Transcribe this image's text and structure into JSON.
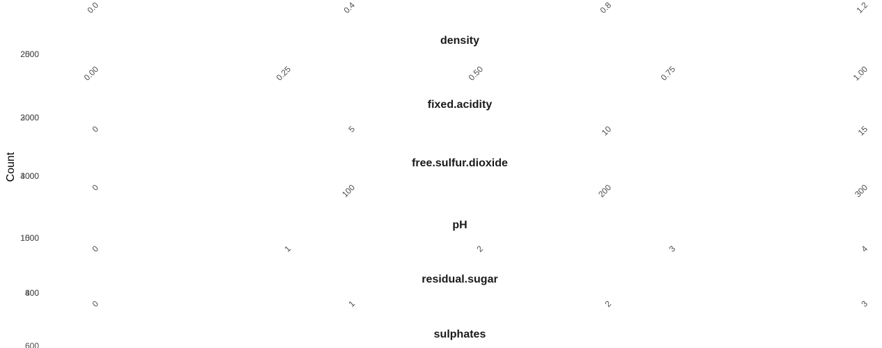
{
  "chart_data": {
    "type": "bar",
    "ylabel": "Count",
    "xlabel": "",
    "grid": false,
    "legend": "none",
    "colors": {
      "title": "#1a1a1a",
      "tick": "#4d4d4d",
      "axis_title": "#000000"
    },
    "panels": [
      {
        "title": "",
        "x_ticks": [
          "0.0",
          "0.4",
          "0.8",
          "1.2"
        ],
        "y_ticks": []
      },
      {
        "title": "density",
        "x_ticks": [
          "0.00",
          "0.25",
          "0.50",
          "0.75",
          "1.00"
        ],
        "y_ticks": [
          "2500",
          "2000"
        ]
      },
      {
        "title": "fixed.acidity",
        "x_ticks": [
          "0",
          "5",
          "10",
          "15"
        ],
        "y_ticks": [
          "3000",
          "2000"
        ]
      },
      {
        "title": "free.sulfur.dioxide",
        "x_ticks": [
          "0",
          "100",
          "200",
          "300"
        ],
        "y_ticks": [
          "3000",
          "4000"
        ]
      },
      {
        "title": "pH",
        "x_ticks": [
          "0",
          "1",
          "2",
          "3",
          "4"
        ],
        "y_ticks": [
          "1500",
          "1000"
        ]
      },
      {
        "title": "residual.sugar",
        "x_ticks": [
          "0",
          "1",
          "2",
          "3"
        ],
        "y_ticks": [
          "800",
          "400"
        ]
      },
      {
        "title": "sulphates",
        "x_ticks": [],
        "y_ticks": [
          "600"
        ]
      }
    ]
  }
}
